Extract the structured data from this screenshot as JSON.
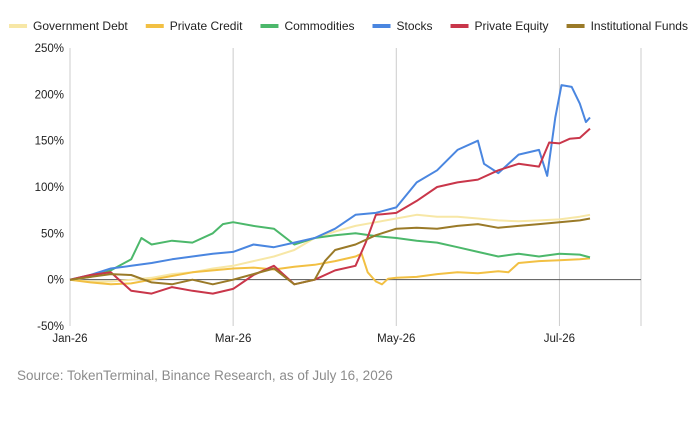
{
  "chart_data": {
    "type": "line",
    "ylim": [
      -50,
      250
    ],
    "y_ticks": [
      -50,
      0,
      50,
      100,
      150,
      200,
      250
    ],
    "y_tick_labels": [
      "-50%",
      "0%",
      "50%",
      "100%",
      "150%",
      "200%",
      "250%"
    ],
    "xlim": [
      0,
      28
    ],
    "x_ticks": [
      {
        "x": 0,
        "label": "Jan-26"
      },
      {
        "x": 8,
        "label": "Mar-26"
      },
      {
        "x": 16,
        "label": "May-26"
      },
      {
        "x": 24,
        "label": "Jul-26"
      }
    ],
    "grid": "vertical",
    "legend_position": "top",
    "series": [
      {
        "name": "Government Debt",
        "color": "#f7e7a6",
        "values": [
          [
            0,
            0
          ],
          [
            1,
            -2
          ],
          [
            2,
            -2
          ],
          [
            3,
            0
          ],
          [
            4,
            2
          ],
          [
            5,
            6
          ],
          [
            6,
            8
          ],
          [
            7,
            12
          ],
          [
            8,
            15
          ],
          [
            9,
            20
          ],
          [
            10,
            25
          ],
          [
            11,
            32
          ],
          [
            12,
            45
          ],
          [
            13,
            52
          ],
          [
            14,
            58
          ],
          [
            15,
            62
          ],
          [
            16,
            66
          ],
          [
            17,
            70
          ],
          [
            18,
            68
          ],
          [
            19,
            68
          ],
          [
            20,
            66
          ],
          [
            21,
            64
          ],
          [
            22,
            63
          ],
          [
            23,
            64
          ],
          [
            24,
            65
          ],
          [
            25,
            68
          ],
          [
            25.5,
            70
          ]
        ]
      },
      {
        "name": "Private Credit",
        "color": "#f2c043",
        "values": [
          [
            0,
            0
          ],
          [
            1,
            -3
          ],
          [
            2,
            -5
          ],
          [
            3,
            -4
          ],
          [
            4,
            0
          ],
          [
            5,
            4
          ],
          [
            6,
            8
          ],
          [
            7,
            10
          ],
          [
            8,
            12
          ],
          [
            9,
            13
          ],
          [
            10,
            11
          ],
          [
            11,
            14
          ],
          [
            12,
            16
          ],
          [
            13,
            20
          ],
          [
            14,
            25
          ],
          [
            14.3,
            28
          ],
          [
            14.6,
            8
          ],
          [
            15,
            -2
          ],
          [
            15.3,
            -5
          ],
          [
            15.6,
            1
          ],
          [
            16,
            2
          ],
          [
            17,
            3
          ],
          [
            18,
            6
          ],
          [
            19,
            8
          ],
          [
            20,
            7
          ],
          [
            21,
            9
          ],
          [
            21.5,
            8
          ],
          [
            22,
            18
          ],
          [
            23,
            20
          ],
          [
            24,
            21
          ],
          [
            25,
            22
          ],
          [
            25.5,
            23
          ]
        ]
      },
      {
        "name": "Commodities",
        "color": "#4cb86b",
        "values": [
          [
            0,
            0
          ],
          [
            1,
            3
          ],
          [
            2,
            10
          ],
          [
            3,
            22
          ],
          [
            3.5,
            45
          ],
          [
            4,
            38
          ],
          [
            5,
            42
          ],
          [
            6,
            40
          ],
          [
            7,
            50
          ],
          [
            7.5,
            60
          ],
          [
            8,
            62
          ],
          [
            9,
            58
          ],
          [
            10,
            55
          ],
          [
            11,
            38
          ],
          [
            12,
            45
          ],
          [
            13,
            48
          ],
          [
            14,
            50
          ],
          [
            15,
            47
          ],
          [
            16,
            45
          ],
          [
            17,
            42
          ],
          [
            18,
            40
          ],
          [
            19,
            35
          ],
          [
            20,
            30
          ],
          [
            21,
            25
          ],
          [
            22,
            28
          ],
          [
            23,
            25
          ],
          [
            24,
            28
          ],
          [
            25,
            27
          ],
          [
            25.5,
            24
          ]
        ]
      },
      {
        "name": "Stocks",
        "color": "#4a86e0",
        "values": [
          [
            0,
            0
          ],
          [
            1,
            5
          ],
          [
            2,
            12
          ],
          [
            3,
            15
          ],
          [
            4,
            18
          ],
          [
            5,
            22
          ],
          [
            6,
            25
          ],
          [
            7,
            28
          ],
          [
            8,
            30
          ],
          [
            9,
            38
          ],
          [
            10,
            35
          ],
          [
            11,
            40
          ],
          [
            12,
            45
          ],
          [
            13,
            55
          ],
          [
            14,
            70
          ],
          [
            15,
            72
          ],
          [
            16,
            78
          ],
          [
            17,
            105
          ],
          [
            18,
            118
          ],
          [
            19,
            140
          ],
          [
            20,
            150
          ],
          [
            20.3,
            125
          ],
          [
            21,
            115
          ],
          [
            22,
            135
          ],
          [
            23,
            140
          ],
          [
            23.4,
            112
          ],
          [
            23.8,
            175
          ],
          [
            24.1,
            210
          ],
          [
            24.6,
            208
          ],
          [
            25,
            190
          ],
          [
            25.3,
            170
          ],
          [
            25.5,
            175
          ]
        ]
      },
      {
        "name": "Private Equity",
        "color": "#c9364a",
        "values": [
          [
            0,
            0
          ],
          [
            1,
            5
          ],
          [
            2,
            8
          ],
          [
            3,
            -12
          ],
          [
            4,
            -15
          ],
          [
            5,
            -8
          ],
          [
            6,
            -12
          ],
          [
            7,
            -15
          ],
          [
            8,
            -10
          ],
          [
            9,
            5
          ],
          [
            10,
            15
          ],
          [
            11,
            -5
          ],
          [
            12,
            0
          ],
          [
            13,
            10
          ],
          [
            14,
            15
          ],
          [
            14.5,
            40
          ],
          [
            15,
            70
          ],
          [
            16,
            72
          ],
          [
            17,
            85
          ],
          [
            18,
            100
          ],
          [
            19,
            105
          ],
          [
            20,
            108
          ],
          [
            21,
            118
          ],
          [
            22,
            125
          ],
          [
            23,
            122
          ],
          [
            23.5,
            148
          ],
          [
            24,
            147
          ],
          [
            24.5,
            152
          ],
          [
            25,
            153
          ],
          [
            25.5,
            163
          ]
        ]
      },
      {
        "name": "Institutional Funds",
        "color": "#9a7a28",
        "values": [
          [
            0,
            0
          ],
          [
            1,
            3
          ],
          [
            2,
            6
          ],
          [
            3,
            5
          ],
          [
            4,
            -3
          ],
          [
            5,
            -5
          ],
          [
            6,
            0
          ],
          [
            7,
            -5
          ],
          [
            8,
            0
          ],
          [
            9,
            6
          ],
          [
            10,
            12
          ],
          [
            11,
            -5
          ],
          [
            12,
            0
          ],
          [
            12.5,
            20
          ],
          [
            13,
            32
          ],
          [
            14,
            38
          ],
          [
            15,
            48
          ],
          [
            16,
            55
          ],
          [
            17,
            56
          ],
          [
            18,
            55
          ],
          [
            19,
            58
          ],
          [
            20,
            60
          ],
          [
            21,
            56
          ],
          [
            22,
            58
          ],
          [
            23,
            60
          ],
          [
            24,
            62
          ],
          [
            25,
            64
          ],
          [
            25.5,
            66
          ]
        ]
      }
    ]
  },
  "source_text": "Source: TokenTerminal, Binance Research, as of July 16, 2026"
}
